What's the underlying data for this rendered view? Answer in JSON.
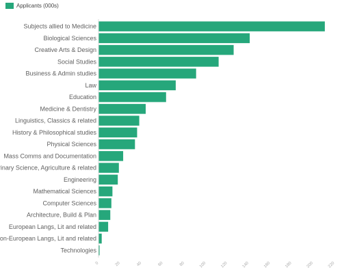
{
  "legend": {
    "label": "Applicants (000s)",
    "color": "#26a77b"
  },
  "chart_data": {
    "type": "bar",
    "orientation": "horizontal",
    "categories": [
      "Subjects allied to Medicine",
      "Biological Sciences",
      "Creative Arts & Design",
      "Social Studies",
      "Business & Admin studies",
      "Law",
      "Education",
      "Medicine & Dentistry",
      "Linguistics, Classics & related",
      "History & Philosophical studies",
      "Physical Sciences",
      "Mass Comms and Documentation",
      "Veterinary Science, Agriculture & related",
      "Engineering",
      "Mathematical Sciences",
      "Computer Sciences",
      "Architecture, Build & Plan",
      "European Langs, Lit and related",
      "Non-European Langs, Lit and related",
      "Technologies"
    ],
    "series": [
      {
        "name": "Applicants (000s)",
        "values": [
          211,
          141,
          126,
          112,
          91,
          72,
          63,
          44,
          38,
          36,
          34,
          23,
          19,
          18,
          13,
          12,
          11,
          9,
          3,
          1
        ]
      }
    ],
    "xlim": [
      0,
      220
    ],
    "xticks": [
      0,
      20,
      40,
      60,
      80,
      100,
      120,
      140,
      160,
      180,
      200,
      220
    ],
    "grid": false,
    "legend_position": "top-left",
    "bar_color": "#26a77b"
  }
}
